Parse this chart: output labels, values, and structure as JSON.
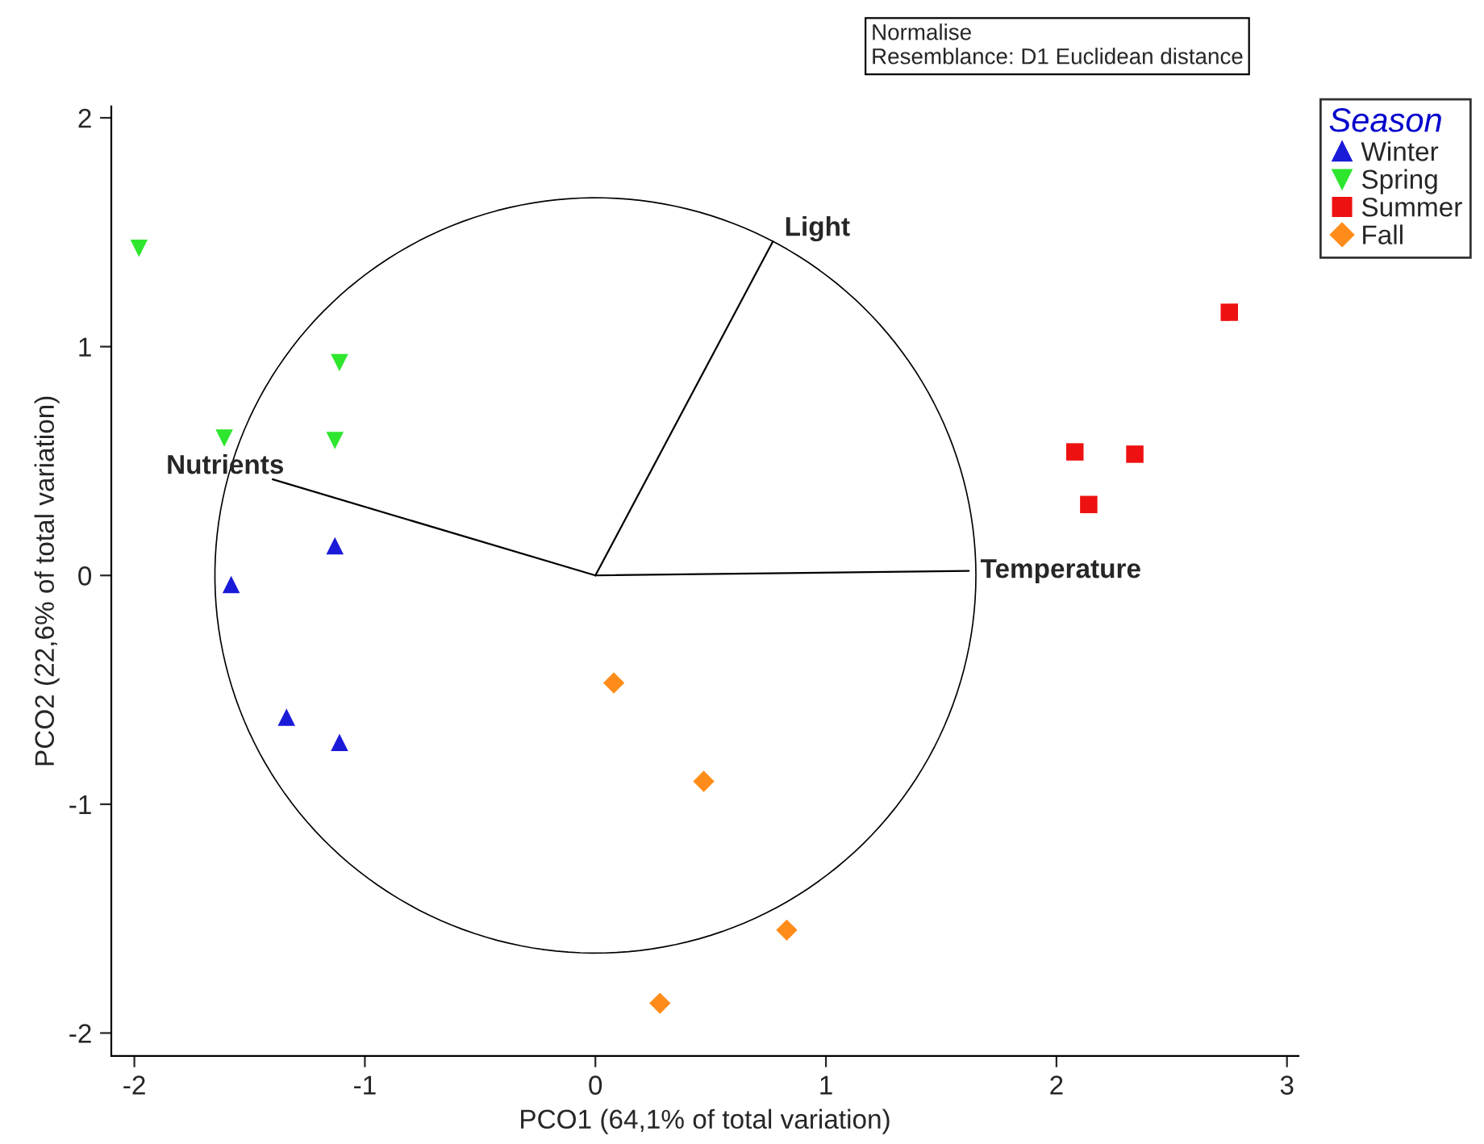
{
  "chart_data": {
    "type": "scatter",
    "xlabel": "PCO1 (64,1% of total variation)",
    "ylabel": "PCO2 (22,6% of total variation)",
    "legend_title": "Season",
    "legend": "top right",
    "annotations": [
      "Normalise",
      "Resemblance: D1 Euclidean distance"
    ],
    "xlim": [
      -2.1,
      3.05
    ],
    "ylim": [
      -2.1,
      2.05
    ],
    "xticks": [
      -2,
      -1,
      0,
      1,
      2,
      3
    ],
    "yticks": [
      -2,
      -1,
      0,
      1,
      2
    ],
    "grid": false,
    "series": [
      {
        "name": "Winter",
        "color": "#1a1ad9",
        "marker": "triangle",
        "x": [
          -1.58,
          -1.13,
          -1.34,
          -1.11
        ],
        "values": [
          -0.04,
          0.13,
          -0.62,
          -0.73
        ]
      },
      {
        "name": "Spring",
        "color": "#2ee62e",
        "marker": "triangle_down",
        "x": [
          -1.98,
          -1.11,
          -1.61,
          -1.13
        ],
        "values": [
          1.43,
          0.93,
          0.6,
          0.59
        ]
      },
      {
        "name": "Summer",
        "color": "#ee1111",
        "marker": "square",
        "x": [
          2.75,
          2.08,
          2.34,
          2.14
        ],
        "values": [
          1.15,
          0.54,
          0.53,
          0.31
        ]
      },
      {
        "name": "Fall",
        "color": "#ff8c1a",
        "marker": "diamond",
        "x": [
          0.08,
          0.47,
          0.83,
          0.28
        ],
        "values": [
          -0.47,
          -0.9,
          -1.55,
          -1.87
        ]
      },
      {
        "name": "Light",
        "type": "line",
        "color": "#000000",
        "x": [
          0,
          0.77
        ],
        "values": [
          0,
          1.46
        ]
      },
      {
        "name": "Nutrients",
        "type": "line",
        "color": "#000000",
        "x": [
          0,
          -1.4
        ],
        "values": [
          0,
          0.42
        ]
      },
      {
        "name": "Temperature",
        "type": "line",
        "color": "#000000",
        "x": [
          0,
          1.62
        ],
        "values": [
          0,
          0.02
        ]
      }
    ]
  }
}
